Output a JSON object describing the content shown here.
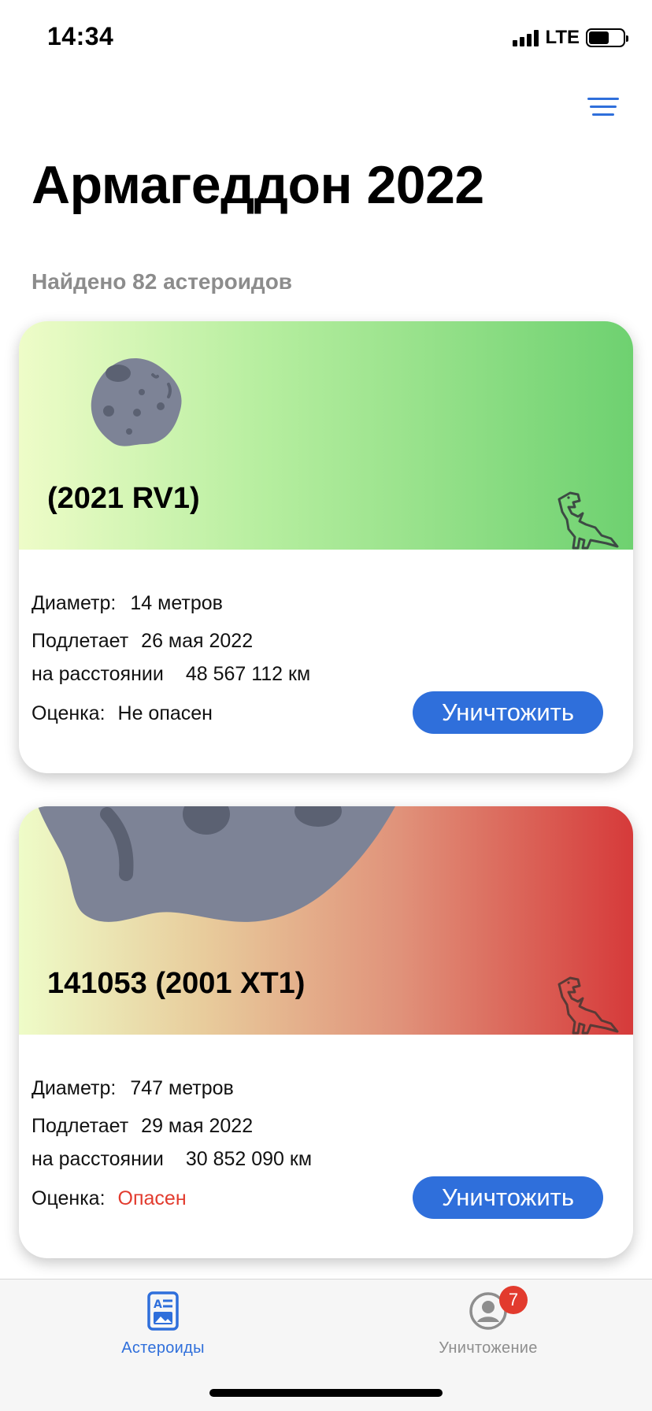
{
  "status_bar": {
    "time": "14:34",
    "network": "LTE"
  },
  "header": {
    "title": "Армагеддон 2022",
    "found": "Найдено 82 астероидов",
    "filter_icon": "filter-lines-icon"
  },
  "labels": {
    "diameter": "Диаметр:",
    "approaches": "Подлетает",
    "distance": "на расстоянии",
    "grade": "Оценка:",
    "destroy": "Уничтожить"
  },
  "asteroids": [
    {
      "name": "(2021 RV1)",
      "diameter": "14 метров",
      "date": "26 мая 2022",
      "distance": "48 567 112 км",
      "grade": "Не опасен",
      "grade_color": "#111111",
      "header_gradient": [
        "#eefcc8",
        "#6ed170"
      ]
    },
    {
      "name": "141053 (2001 XT1)",
      "diameter": "747 метров",
      "date": "29 мая 2022",
      "distance": "30 852 090 км",
      "grade": "Опасен",
      "grade_color": "#e23b2e",
      "header_gradient": [
        "#eefcc8",
        "#d63a3a"
      ]
    }
  ],
  "tab_bar": {
    "tabs": [
      {
        "label": "Астероиды",
        "icon": "asteroids-list-icon",
        "active": true
      },
      {
        "label": "Уничтожение",
        "icon": "user-icon",
        "badge": "7",
        "active": false
      }
    ]
  },
  "colors": {
    "accent": "#2f6fdb",
    "danger": "#e23b2e",
    "asteroid": "#7d8396"
  }
}
